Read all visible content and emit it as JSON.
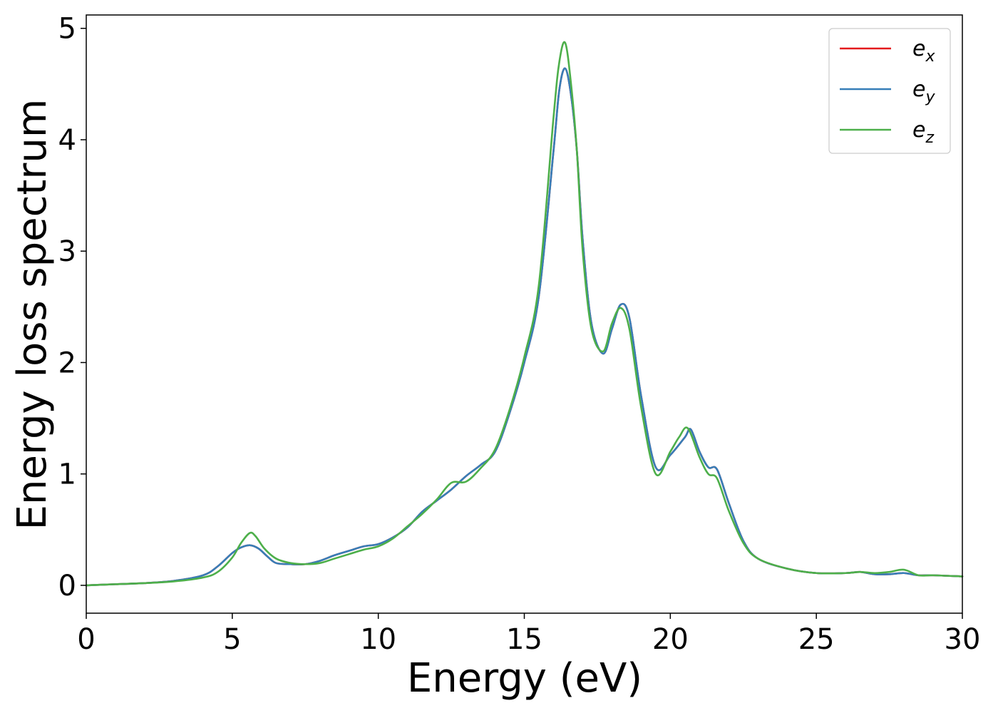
{
  "chart_data": {
    "type": "line",
    "title": "",
    "xlabel": "Energy (eV)",
    "ylabel": "Energy loss spectrum",
    "xlim": [
      0,
      30
    ],
    "ylim": [
      -0.25,
      5.12
    ],
    "xticks": [
      0,
      5,
      10,
      15,
      20,
      25,
      30
    ],
    "xtick_labels": [
      "0",
      "5",
      "10",
      "15",
      "20",
      "25",
      "30"
    ],
    "yticks": [
      0,
      1,
      2,
      3,
      4,
      5
    ],
    "ytick_labels": [
      "0",
      "1",
      "2",
      "3",
      "4",
      "5"
    ],
    "grid": false,
    "legend_position": "top-right",
    "series": [
      {
        "name": "e_x",
        "legend_base": "e",
        "legend_sub": "x",
        "color": "#e41a1c",
        "x": [
          0,
          1,
          2,
          3,
          4,
          4.5,
          5,
          5.3,
          5.6,
          5.9,
          6.2,
          6.5,
          7,
          7.5,
          8,
          8.5,
          9,
          9.5,
          10,
          10.5,
          11,
          11.5,
          12,
          12.5,
          13,
          13.5,
          14,
          14.5,
          15,
          15.5,
          16,
          16.2,
          16.4,
          16.6,
          16.8,
          17,
          17.3,
          17.7,
          18,
          18.3,
          18.6,
          19,
          19.5,
          20,
          20.5,
          20.7,
          21,
          21.3,
          21.6,
          22,
          22.5,
          23,
          24,
          25,
          26,
          26.5,
          27,
          27.5,
          28,
          28.5,
          29,
          30
        ],
        "y": [
          0,
          0.01,
          0.02,
          0.04,
          0.09,
          0.17,
          0.29,
          0.34,
          0.36,
          0.33,
          0.26,
          0.2,
          0.19,
          0.19,
          0.22,
          0.27,
          0.31,
          0.35,
          0.37,
          0.43,
          0.52,
          0.66,
          0.76,
          0.86,
          0.98,
          1.08,
          1.2,
          1.55,
          2.0,
          2.6,
          3.9,
          4.45,
          4.64,
          4.4,
          3.9,
          3.1,
          2.35,
          2.08,
          2.3,
          2.52,
          2.4,
          1.7,
          1.06,
          1.17,
          1.33,
          1.4,
          1.2,
          1.06,
          1.04,
          0.74,
          0.4,
          0.24,
          0.15,
          0.11,
          0.11,
          0.12,
          0.1,
          0.1,
          0.11,
          0.09,
          0.09,
          0.08
        ]
      },
      {
        "name": "e_y",
        "legend_base": "e",
        "legend_sub": "y",
        "color": "#377eb8",
        "x": [
          0,
          1,
          2,
          3,
          4,
          4.5,
          5,
          5.3,
          5.6,
          5.9,
          6.2,
          6.5,
          7,
          7.5,
          8,
          8.5,
          9,
          9.5,
          10,
          10.5,
          11,
          11.5,
          12,
          12.5,
          13,
          13.5,
          14,
          14.5,
          15,
          15.5,
          16,
          16.2,
          16.4,
          16.6,
          16.8,
          17,
          17.3,
          17.7,
          18,
          18.3,
          18.6,
          19,
          19.5,
          20,
          20.5,
          20.7,
          21,
          21.3,
          21.6,
          22,
          22.5,
          23,
          24,
          25,
          26,
          26.5,
          27,
          27.5,
          28,
          28.5,
          29,
          30
        ],
        "y": [
          0,
          0.01,
          0.02,
          0.04,
          0.09,
          0.17,
          0.29,
          0.34,
          0.36,
          0.33,
          0.26,
          0.2,
          0.19,
          0.19,
          0.22,
          0.27,
          0.31,
          0.35,
          0.37,
          0.43,
          0.52,
          0.66,
          0.76,
          0.86,
          0.98,
          1.08,
          1.2,
          1.55,
          2.0,
          2.6,
          3.9,
          4.45,
          4.64,
          4.4,
          3.9,
          3.1,
          2.35,
          2.08,
          2.3,
          2.52,
          2.4,
          1.7,
          1.06,
          1.17,
          1.33,
          1.4,
          1.2,
          1.06,
          1.04,
          0.74,
          0.4,
          0.24,
          0.15,
          0.11,
          0.11,
          0.12,
          0.1,
          0.1,
          0.11,
          0.09,
          0.09,
          0.08
        ]
      },
      {
        "name": "e_z",
        "legend_base": "e",
        "legend_sub": "z",
        "color": "#4daf4a",
        "x": [
          0,
          1,
          2,
          3,
          4,
          4.5,
          5,
          5.3,
          5.6,
          5.8,
          6.1,
          6.5,
          7,
          7.5,
          8,
          8.5,
          9,
          9.5,
          10,
          10.5,
          11,
          11.5,
          12,
          12.5,
          13,
          13.5,
          14,
          14.5,
          15,
          15.5,
          16,
          16.2,
          16.4,
          16.6,
          16.8,
          17,
          17.3,
          17.7,
          18,
          18.3,
          18.6,
          19,
          19.5,
          20,
          20.3,
          20.6,
          21,
          21.3,
          21.6,
          22,
          22.5,
          23,
          24,
          25,
          26,
          26.5,
          27,
          27.5,
          28,
          28.5,
          29,
          30
        ],
        "y": [
          0,
          0.01,
          0.02,
          0.035,
          0.07,
          0.12,
          0.25,
          0.38,
          0.47,
          0.44,
          0.33,
          0.24,
          0.2,
          0.19,
          0.2,
          0.24,
          0.28,
          0.32,
          0.35,
          0.42,
          0.53,
          0.64,
          0.77,
          0.92,
          0.93,
          1.05,
          1.22,
          1.58,
          2.05,
          2.7,
          4.2,
          4.7,
          4.87,
          4.5,
          3.9,
          3.0,
          2.3,
          2.1,
          2.35,
          2.49,
          2.3,
          1.6,
          1.0,
          1.2,
          1.33,
          1.41,
          1.15,
          1.0,
          0.96,
          0.67,
          0.38,
          0.24,
          0.15,
          0.11,
          0.11,
          0.12,
          0.11,
          0.12,
          0.14,
          0.09,
          0.09,
          0.08
        ]
      }
    ]
  }
}
